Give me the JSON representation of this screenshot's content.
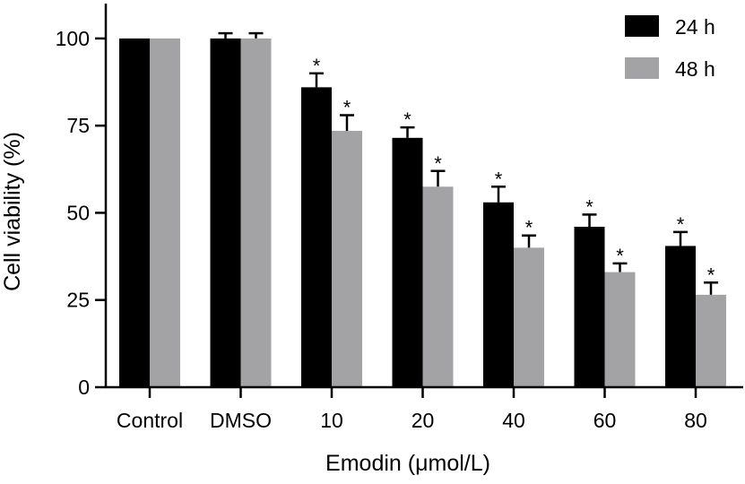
{
  "chart_data": {
    "type": "bar",
    "xlabel": "Emodin (μmol/L)",
    "ylabel": "Cell viability (%)",
    "ylim": [
      0,
      110
    ],
    "yticks": [
      0,
      25,
      50,
      75,
      100
    ],
    "categories": [
      "Control",
      "DMSO",
      "10",
      "20",
      "40",
      "60",
      "80"
    ],
    "series": [
      {
        "name": "24 h",
        "color": "#000000",
        "values": [
          100,
          100,
          86,
          71.5,
          53,
          46,
          40.5
        ],
        "errors": [
          0,
          1.5,
          4,
          3,
          4.5,
          3.5,
          4
        ],
        "significant": [
          false,
          false,
          true,
          true,
          true,
          true,
          true
        ]
      },
      {
        "name": "48 h",
        "color": "#a3a3a6",
        "values": [
          100,
          100,
          73.5,
          57.5,
          40,
          33,
          26.5
        ],
        "errors": [
          0,
          1.5,
          4.5,
          4.5,
          3.5,
          2.5,
          3.5
        ],
        "significant": [
          false,
          false,
          true,
          true,
          true,
          true,
          true
        ]
      }
    ],
    "significance_marker": "*",
    "legend_position": "top-right"
  }
}
